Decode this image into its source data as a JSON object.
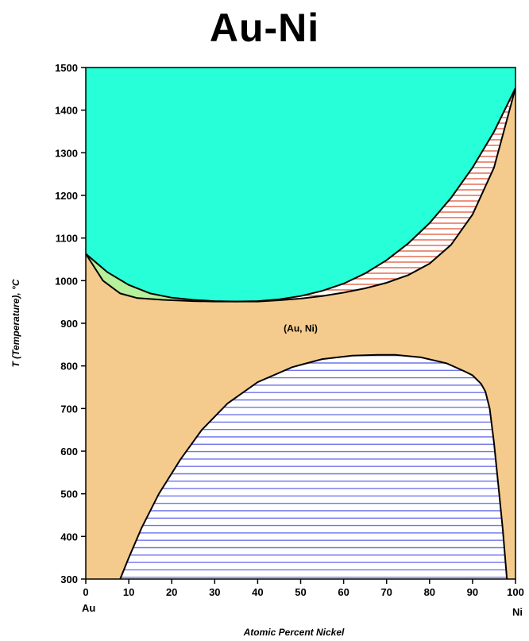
{
  "title": "Au-Ni",
  "colors": {
    "liquid": "#27ffd8",
    "solid_solution": "#f5cb8d",
    "miscibility_gap_hatch": "#6f74e8",
    "two_phase_right_hatch": "#e05030",
    "two_phase_left_fill": "#b6f09a",
    "boundary": "#000000"
  },
  "chart_data": {
    "type": "phase_diagram",
    "title": "Au-Ni",
    "xlabel": "Atomic Percent Nickel",
    "ylabel": "T (Temperature), °C",
    "xlim": [
      0,
      100
    ],
    "ylim": [
      300,
      1500
    ],
    "x_ticks": [
      "0",
      "10",
      "20",
      "30",
      "40",
      "50",
      "60",
      "70",
      "80",
      "90",
      "100"
    ],
    "y_ticks": [
      "300",
      "400",
      "500",
      "600",
      "700",
      "800",
      "900",
      "1000",
      "1100",
      "1200",
      "1300",
      "1400",
      "1500"
    ],
    "end_labels": {
      "left": "Au",
      "right": "Ni"
    },
    "phase_labels": [
      {
        "text": "(Au, Ni)",
        "x": 50,
        "y": 880
      }
    ],
    "curves": {
      "liquidus": [
        [
          0,
          1063
        ],
        [
          5,
          1020
        ],
        [
          10,
          990
        ],
        [
          15,
          970
        ],
        [
          20,
          960
        ],
        [
          25,
          955
        ],
        [
          30,
          952
        ],
        [
          35,
          951
        ],
        [
          40,
          952
        ],
        [
          45,
          956
        ],
        [
          50,
          964
        ],
        [
          55,
          976
        ],
        [
          60,
          993
        ],
        [
          65,
          1017
        ],
        [
          70,
          1048
        ],
        [
          75,
          1087
        ],
        [
          80,
          1135
        ],
        [
          85,
          1194
        ],
        [
          90,
          1265
        ],
        [
          95,
          1349
        ],
        [
          100,
          1452
        ]
      ],
      "solidus": [
        [
          0,
          1063
        ],
        [
          4,
          1000
        ],
        [
          8,
          970
        ],
        [
          12,
          959
        ],
        [
          18,
          955
        ],
        [
          25,
          952
        ],
        [
          30,
          951
        ],
        [
          35,
          951
        ],
        [
          40,
          951
        ],
        [
          45,
          954
        ],
        [
          50,
          958
        ],
        [
          55,
          964
        ],
        [
          60,
          972
        ],
        [
          65,
          982
        ],
        [
          70,
          995
        ],
        [
          75,
          1013
        ],
        [
          80,
          1040
        ],
        [
          85,
          1084
        ],
        [
          90,
          1155
        ],
        [
          95,
          1265
        ],
        [
          100,
          1452
        ]
      ],
      "miscibility_gap": [
        [
          8,
          300
        ],
        [
          10,
          350
        ],
        [
          13,
          420
        ],
        [
          17,
          500
        ],
        [
          22,
          580
        ],
        [
          27,
          650
        ],
        [
          33,
          712
        ],
        [
          40,
          762
        ],
        [
          48,
          797
        ],
        [
          55,
          816
        ],
        [
          62,
          824
        ],
        [
          68,
          826
        ],
        [
          72,
          826
        ],
        [
          78,
          820
        ],
        [
          84,
          806
        ],
        [
          88,
          788
        ],
        [
          90,
          778
        ],
        [
          92,
          758
        ],
        [
          93,
          740
        ],
        [
          94,
          700
        ],
        [
          95,
          620
        ],
        [
          96,
          520
        ],
        [
          97,
          420
        ],
        [
          97.5,
          360
        ],
        [
          98,
          300
        ]
      ]
    }
  }
}
